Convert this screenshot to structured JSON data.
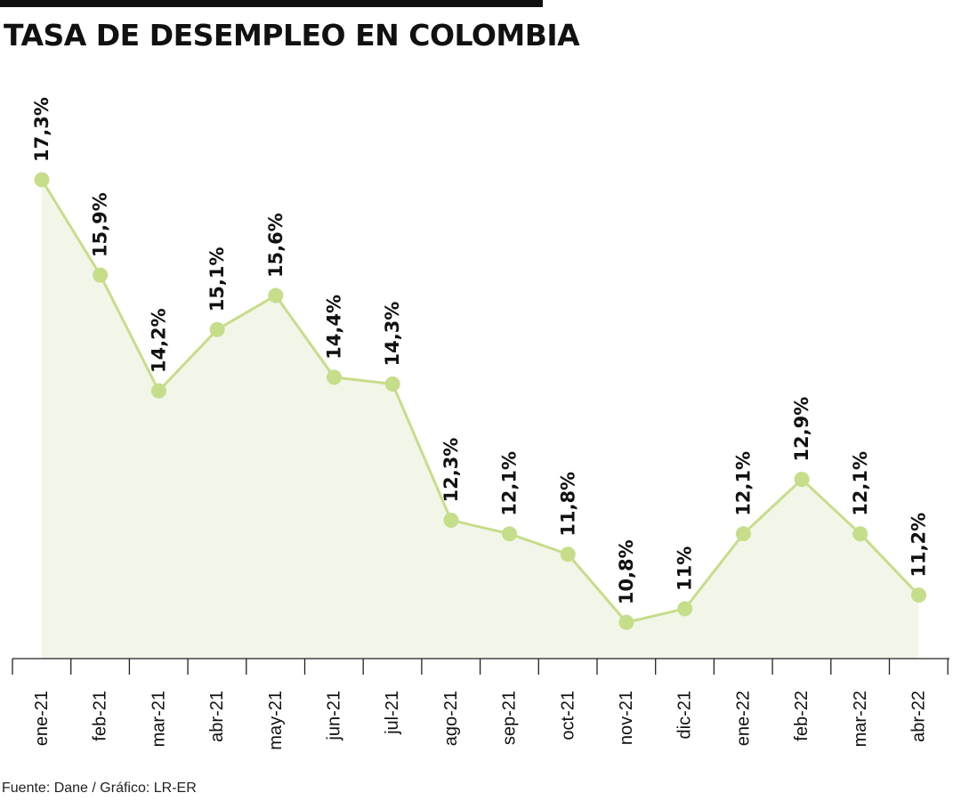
{
  "title": "TASA DE DESEMPLEO EN COLOMBIA",
  "source": "Fuente: Dane / Gráfico: LR-ER",
  "colors": {
    "line": "#c6dd8a",
    "marker": "#c6dd8a",
    "area": "#f1f6e8",
    "text": "#111111",
    "axis": "#222222"
  },
  "chart_data": {
    "type": "line",
    "categories": [
      "ene-21",
      "feb-21",
      "mar-21",
      "abr-21",
      "may-21",
      "jun-21",
      "jul-21",
      "ago-21",
      "sep-21",
      "oct-21",
      "nov-21",
      "dic-21",
      "ene-22",
      "feb-22",
      "mar-22",
      "abr-22"
    ],
    "values": [
      17.3,
      15.9,
      14.2,
      15.1,
      15.6,
      14.4,
      14.3,
      12.3,
      12.1,
      11.8,
      10.8,
      11.0,
      12.1,
      12.9,
      12.1,
      11.2
    ],
    "labels": [
      "17,3%",
      "15,9%",
      "14,2%",
      "15,1%",
      "15,6%",
      "14,4%",
      "14,3%",
      "12,3%",
      "12,1%",
      "11,8%",
      "10,8%",
      "11%",
      "12,1%",
      "12,9%",
      "12,1%",
      "11,2%"
    ],
    "title": "TASA DE DESEMPLEO EN COLOMBIA",
    "xlabel": "",
    "ylabel": "",
    "area_fill": true,
    "grid": false,
    "legend": "none"
  }
}
